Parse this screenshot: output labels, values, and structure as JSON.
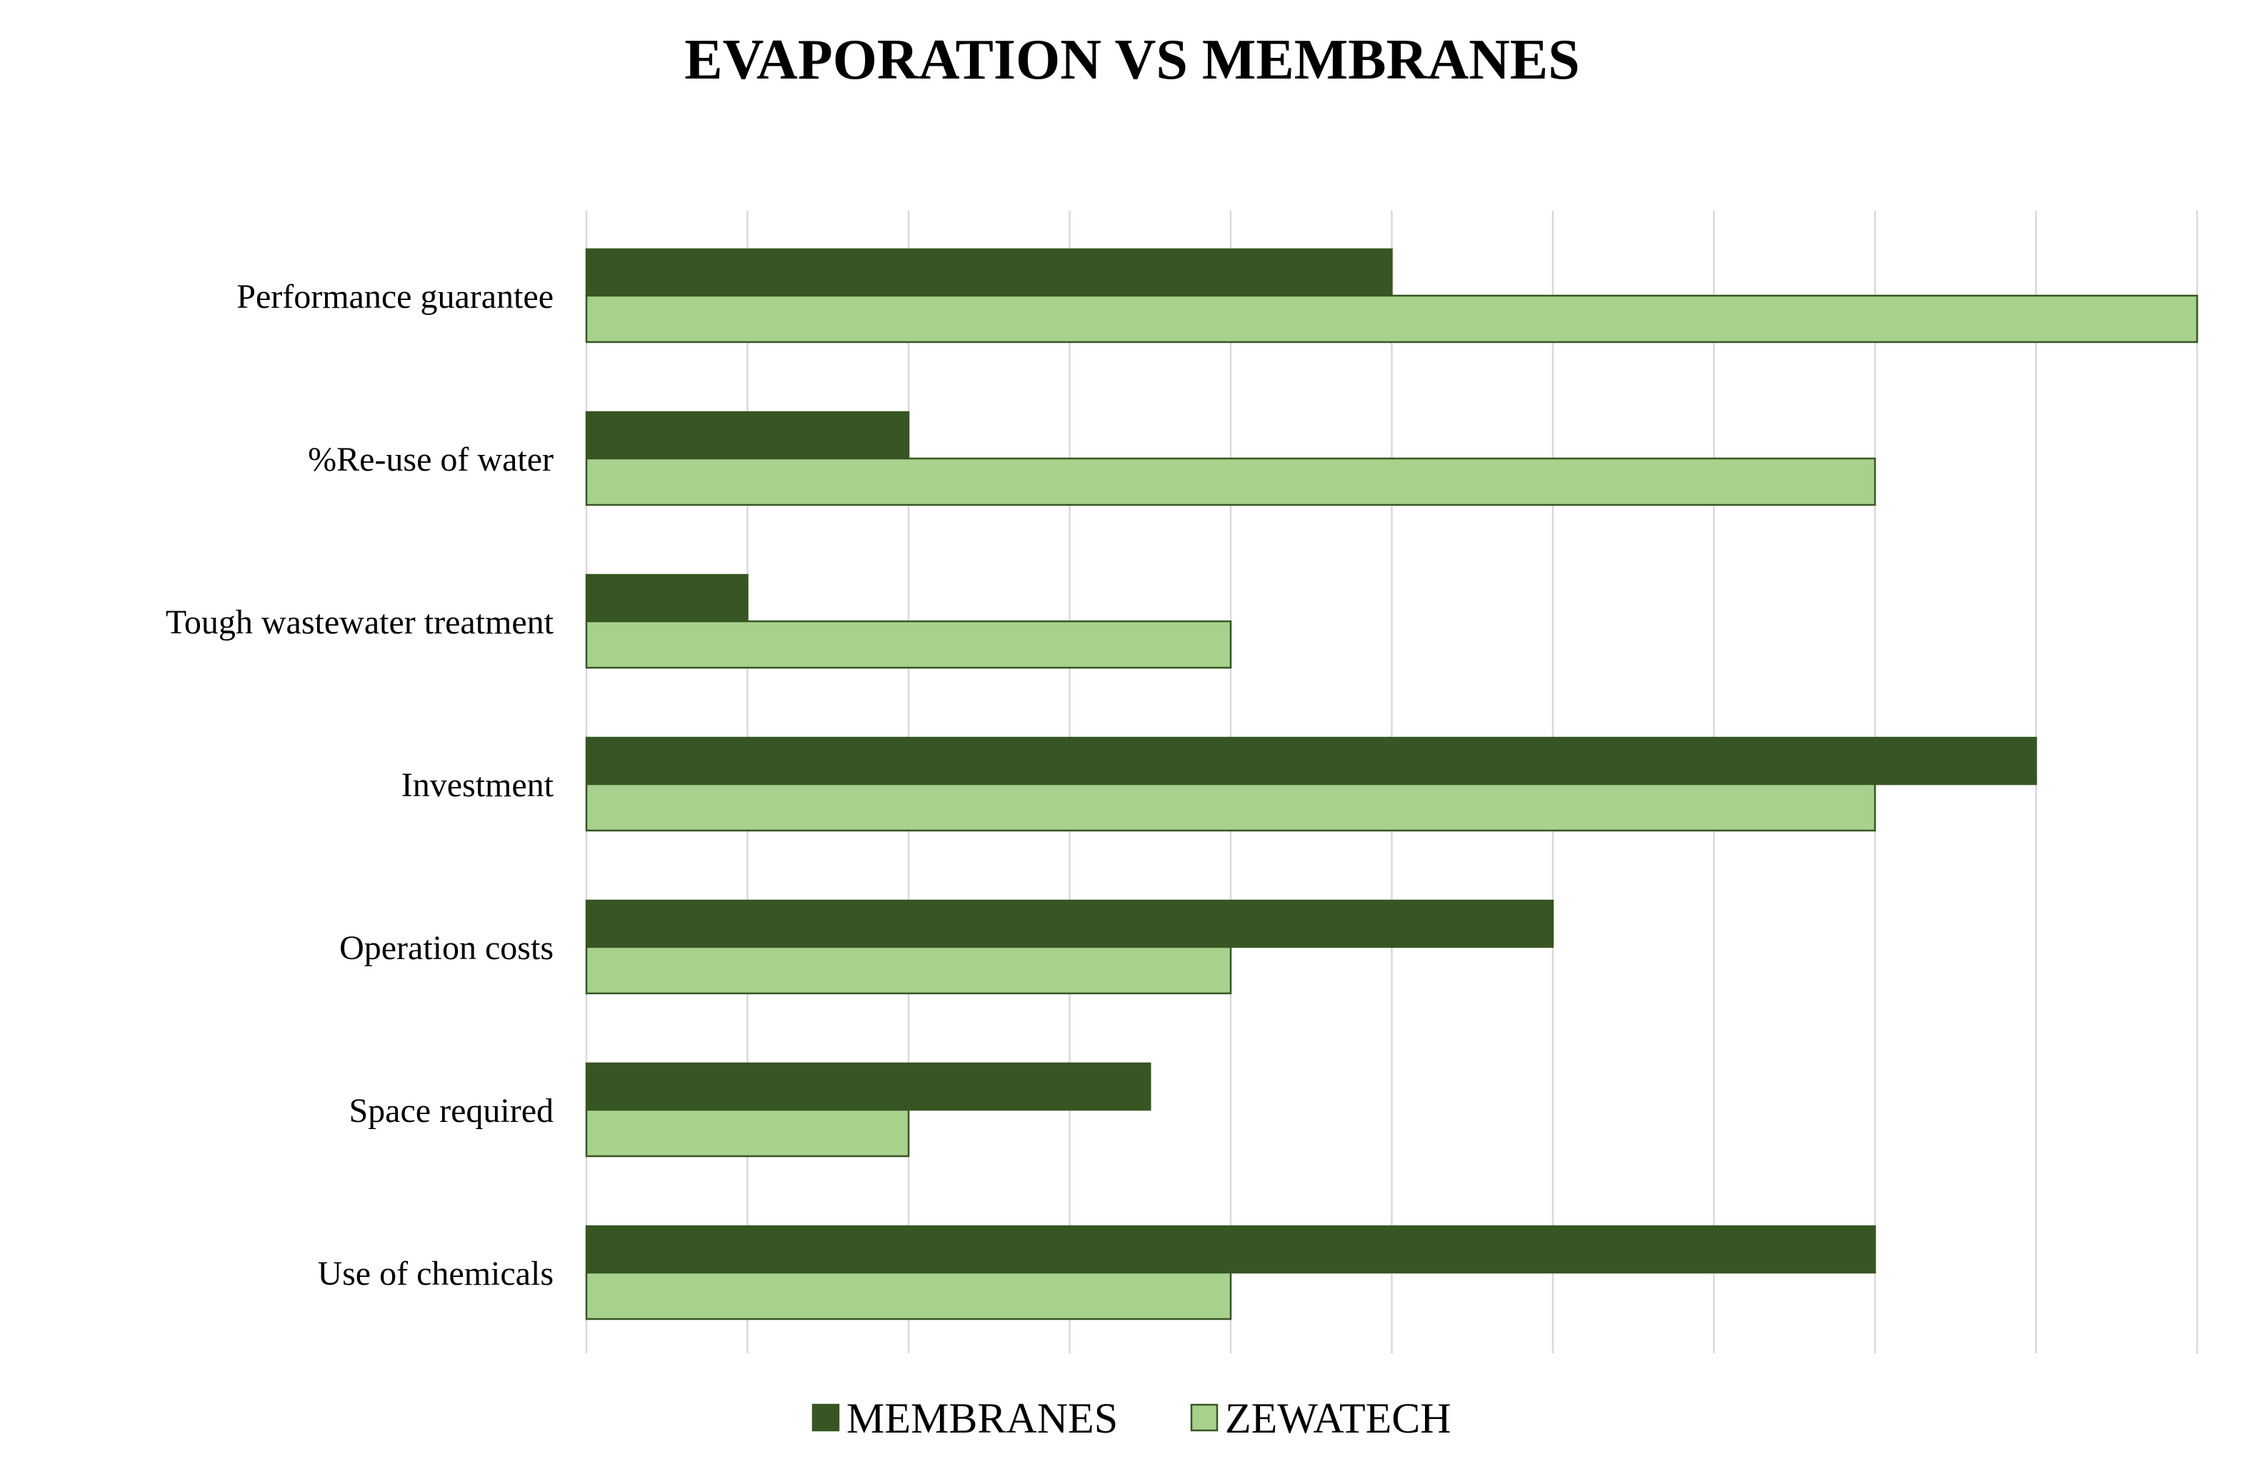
{
  "chart_data": {
    "type": "bar",
    "orientation": "horizontal",
    "title": "EVAPORATION VS MEMBRANES",
    "xlabel": "",
    "ylabel": "",
    "xlim": [
      0,
      10
    ],
    "grid": true,
    "x_tick_labels_visible": false,
    "legend_position": "bottom",
    "categories": [
      "Performance guarantee",
      "%Re-use of water",
      "Tough wastewater treatment",
      "Investment",
      "Operation costs",
      "Space required",
      "Use of chemicals"
    ],
    "series": [
      {
        "name": "MEMBRANES",
        "color": "#375623",
        "values": [
          5,
          2,
          1,
          9,
          6,
          3.5,
          8
        ]
      },
      {
        "name": "ZEWATECH",
        "color": "#A9D18E",
        "values": [
          10,
          8,
          4,
          8,
          4,
          2,
          4
        ]
      }
    ],
    "bar_outline_color": "#375623"
  }
}
